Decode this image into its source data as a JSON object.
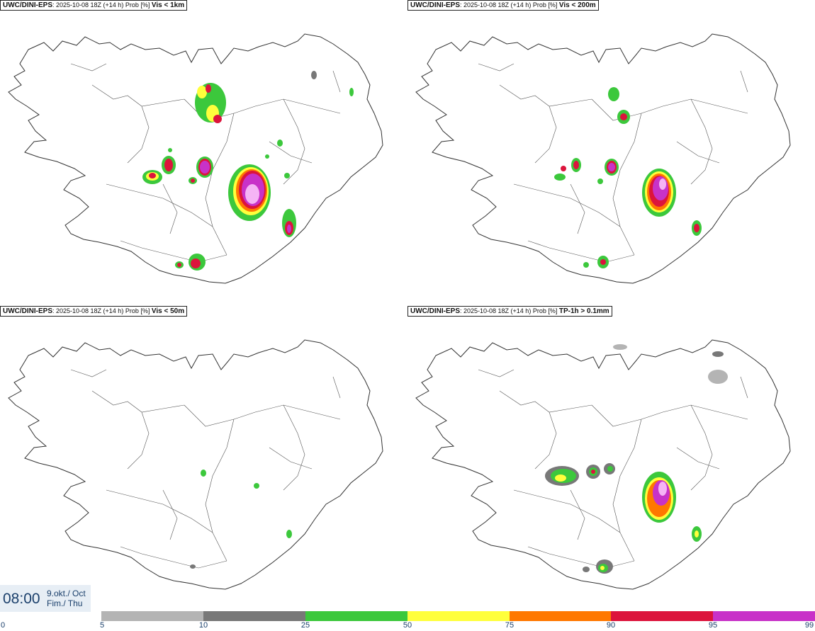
{
  "panels": [
    {
      "model": "UWC/DINI-EPS",
      "info": ": 2025-10-08 18Z (+14 h) Prob [%] ",
      "variable": "Vis < 1km"
    },
    {
      "model": "UWC/DINI-EPS",
      "info": ": 2025-10-08 18Z (+14 h) Prob [%] ",
      "variable": "Vis < 200m"
    },
    {
      "model": "UWC/DINI-EPS",
      "info": ": 2025-10-08 18Z (+14 h) Prob [%] ",
      "variable": "Vis < 50m"
    },
    {
      "model": "UWC/DINI-EPS",
      "info": ": 2025-10-08 18Z (+14 h) Prob [%] ",
      "variable": "TP-1h > 0.1mm"
    }
  ],
  "time": {
    "clock": "08:00",
    "date_line1": "9.okt./ Oct",
    "date_line2": "Fim./ Thu"
  },
  "legend": {
    "ticks": [
      "0",
      "5",
      "10",
      "25",
      "50",
      "75",
      "90",
      "95",
      "99"
    ],
    "colors": [
      "#ffffff",
      "#b4b4b4",
      "#787878",
      "#3cc83c",
      "#ffff3c",
      "#ff7800",
      "#dc143c",
      "#c832c8",
      "#f5b4f5"
    ]
  }
}
